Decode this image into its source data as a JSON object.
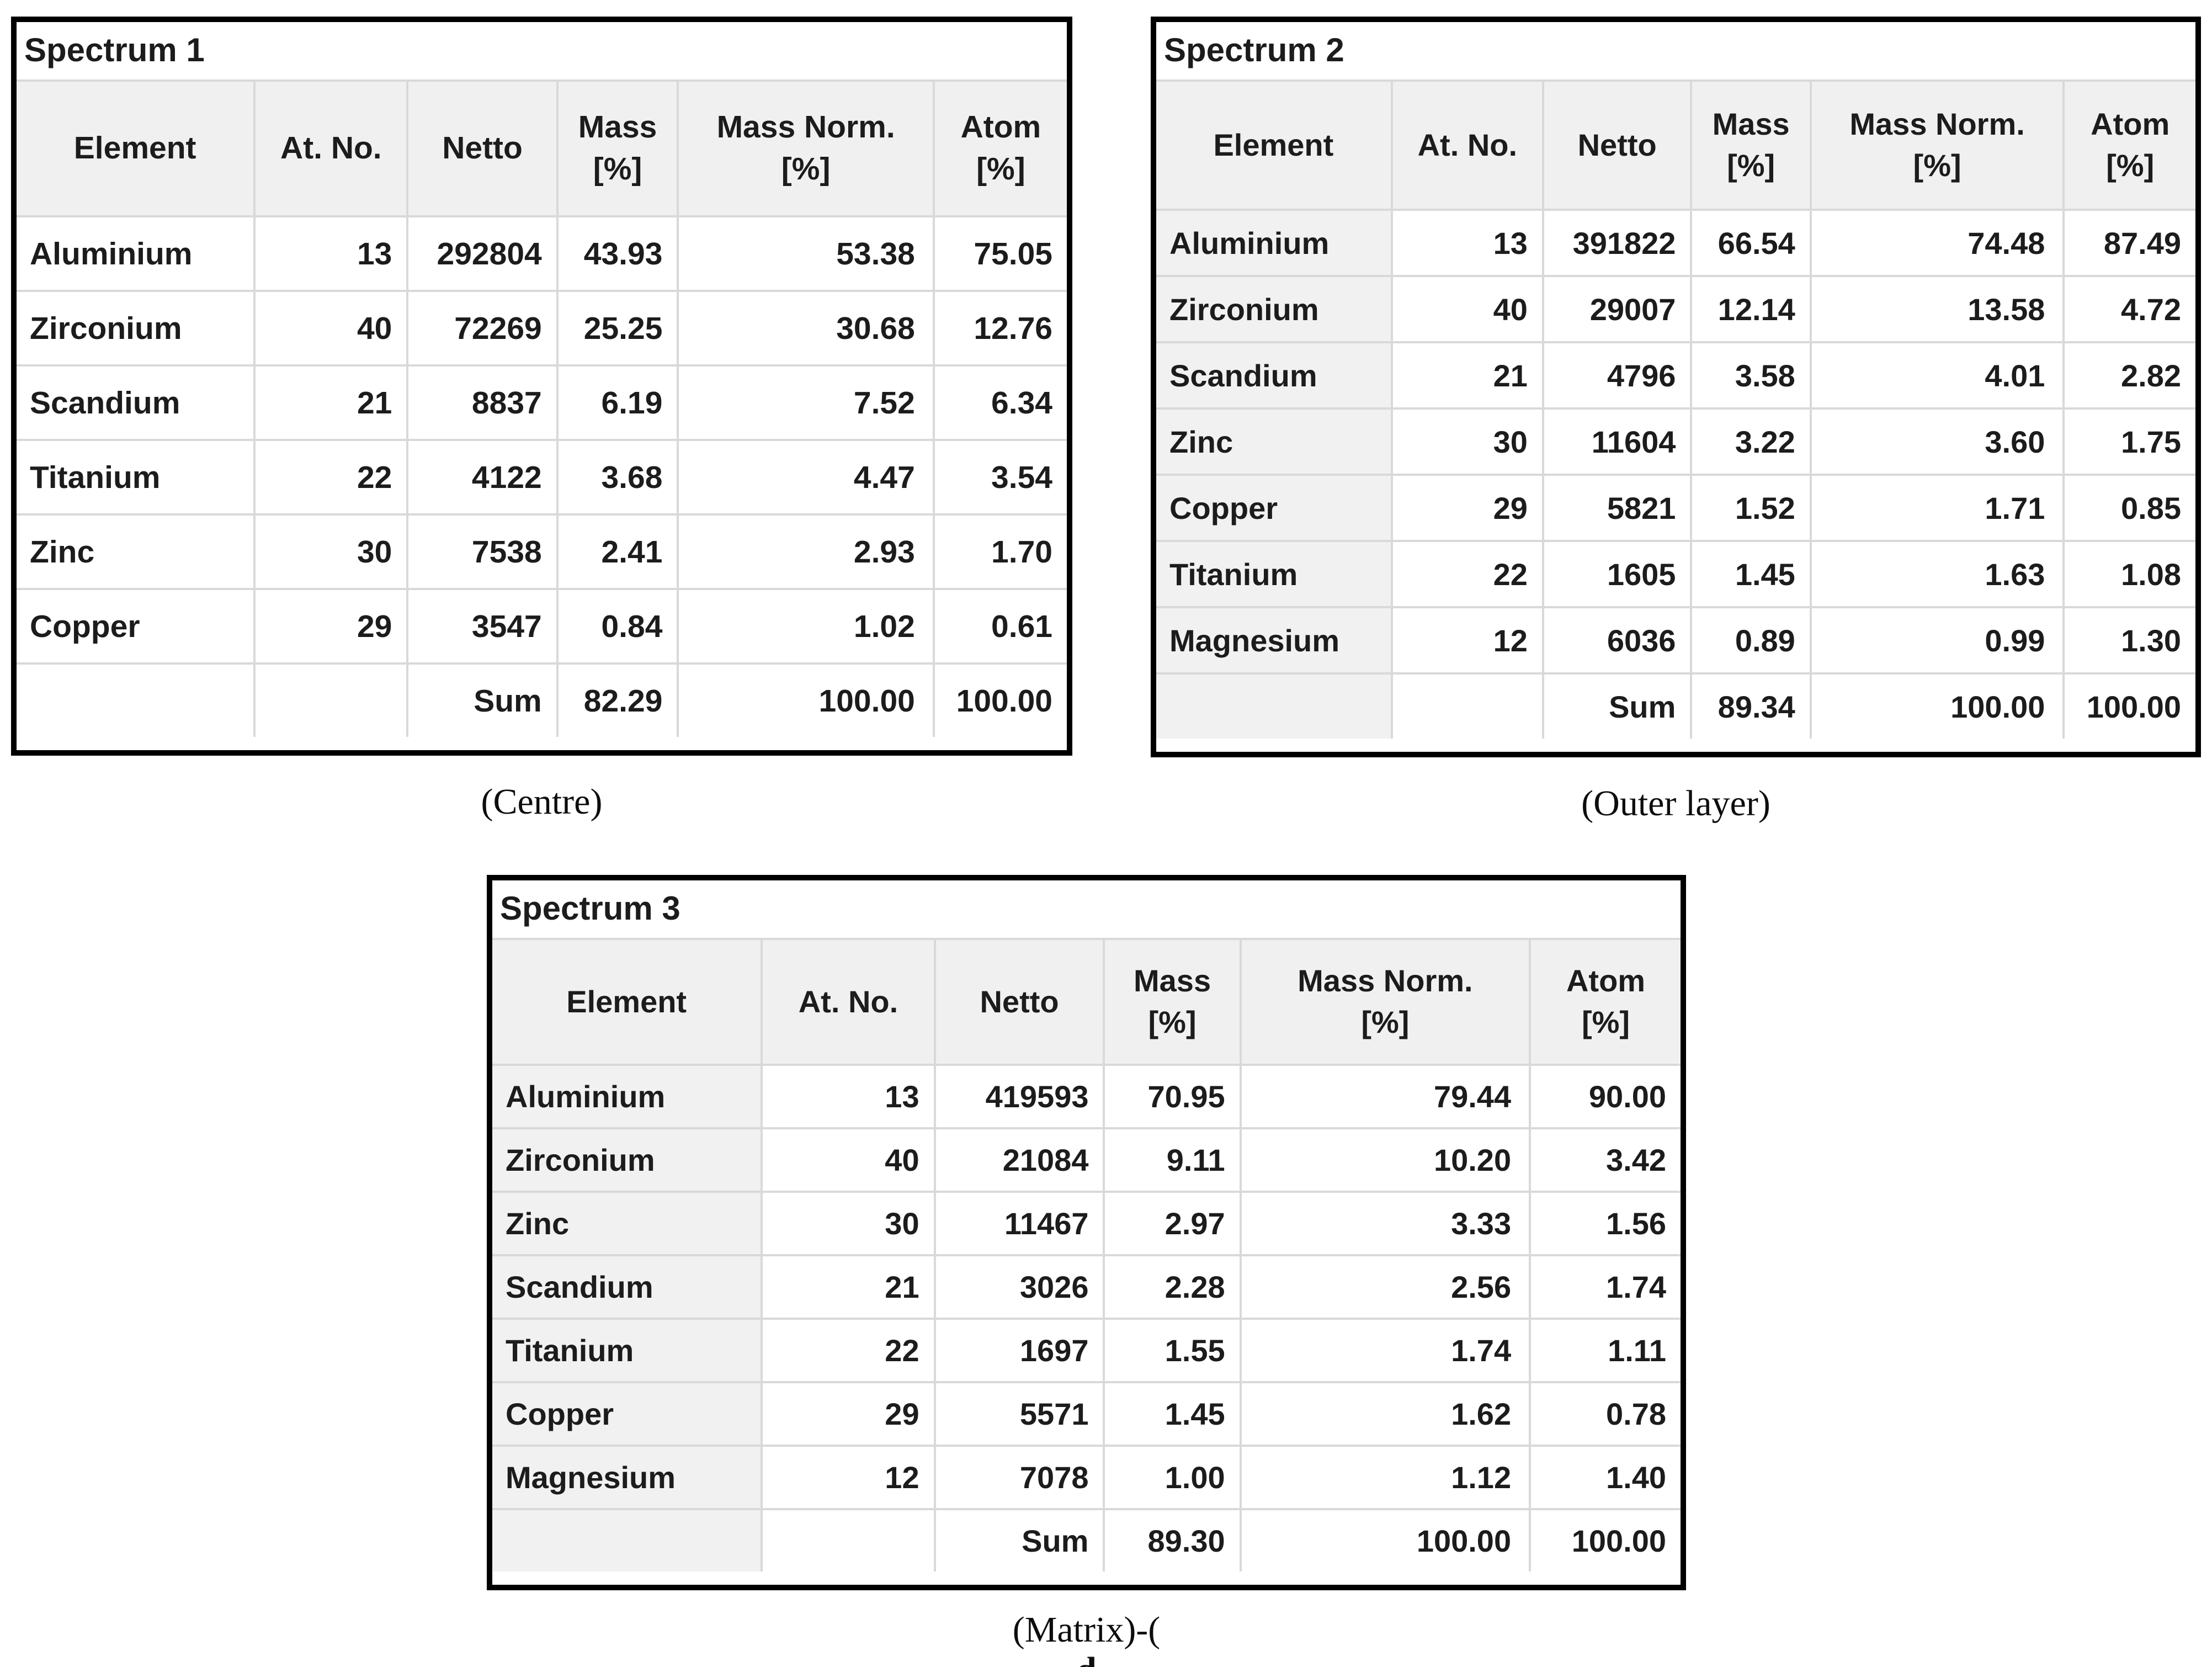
{
  "colors": {
    "outer_border": "#000000",
    "gridline": "#d9d9d9",
    "header_bg": "#f1f0f0",
    "shaded_first_column_bg": "#f2f1f1",
    "text": "#1c1c1c",
    "page_bg": "#ffffff"
  },
  "columns": [
    {
      "label": "Element",
      "unit": ""
    },
    {
      "label": "At. No.",
      "unit": ""
    },
    {
      "label": "Netto",
      "unit": ""
    },
    {
      "label": "Mass",
      "unit": "[%]"
    },
    {
      "label": "Mass Norm.",
      "unit": "[%]"
    },
    {
      "label": "Atom",
      "unit": "[%]"
    }
  ],
  "tables": [
    {
      "title": "Spectrum 1",
      "caption_parts": [
        {
          "text": "(Centre)",
          "bold": false
        }
      ],
      "rows": [
        {
          "element": "Aluminium",
          "at_no": "13",
          "netto": "292804",
          "mass": "43.93",
          "mass_norm": "53.38",
          "atom": "75.05"
        },
        {
          "element": "Zirconium",
          "at_no": "40",
          "netto": "72269",
          "mass": "25.25",
          "mass_norm": "30.68",
          "atom": "12.76"
        },
        {
          "element": "Scandium",
          "at_no": "21",
          "netto": "8837",
          "mass": "6.19",
          "mass_norm": "7.52",
          "atom": "6.34"
        },
        {
          "element": "Titanium",
          "at_no": "22",
          "netto": "4122",
          "mass": "3.68",
          "mass_norm": "4.47",
          "atom": "3.54"
        },
        {
          "element": "Zinc",
          "at_no": "30",
          "netto": "7538",
          "mass": "2.41",
          "mass_norm": "2.93",
          "atom": "1.70"
        },
        {
          "element": "Copper",
          "at_no": "29",
          "netto": "3547",
          "mass": "0.84",
          "mass_norm": "1.02",
          "atom": "0.61"
        }
      ],
      "sum": {
        "label": "Sum",
        "mass": "82.29",
        "mass_norm": "100.00",
        "atom": "100.00"
      }
    },
    {
      "title": "Spectrum 2",
      "caption_parts": [
        {
          "text": "(Outer layer)",
          "bold": false
        }
      ],
      "rows": [
        {
          "element": "Aluminium",
          "at_no": "13",
          "netto": "391822",
          "mass": "66.54",
          "mass_norm": "74.48",
          "atom": "87.49"
        },
        {
          "element": "Zirconium",
          "at_no": "40",
          "netto": "29007",
          "mass": "12.14",
          "mass_norm": "13.58",
          "atom": "4.72"
        },
        {
          "element": "Scandium",
          "at_no": "21",
          "netto": "4796",
          "mass": "3.58",
          "mass_norm": "4.01",
          "atom": "2.82"
        },
        {
          "element": "Zinc",
          "at_no": "30",
          "netto": "11604",
          "mass": "3.22",
          "mass_norm": "3.60",
          "atom": "1.75"
        },
        {
          "element": "Copper",
          "at_no": "29",
          "netto": "5821",
          "mass": "1.52",
          "mass_norm": "1.71",
          "atom": "0.85"
        },
        {
          "element": "Titanium",
          "at_no": "22",
          "netto": "1605",
          "mass": "1.45",
          "mass_norm": "1.63",
          "atom": "1.08"
        },
        {
          "element": "Magnesium",
          "at_no": "12",
          "netto": "6036",
          "mass": "0.89",
          "mass_norm": "0.99",
          "atom": "1.30"
        }
      ],
      "sum": {
        "label": "Sum",
        "mass": "89.34",
        "mass_norm": "100.00",
        "atom": "100.00"
      }
    },
    {
      "title": "Spectrum 3",
      "caption_parts": [
        {
          "text": "(Matrix)-(",
          "bold": false
        },
        {
          "text": "d",
          "bold": true
        },
        {
          "text": ")",
          "bold": false
        }
      ],
      "rows": [
        {
          "element": "Aluminium",
          "at_no": "13",
          "netto": "419593",
          "mass": "70.95",
          "mass_norm": "79.44",
          "atom": "90.00"
        },
        {
          "element": "Zirconium",
          "at_no": "40",
          "netto": "21084",
          "mass": "9.11",
          "mass_norm": "10.20",
          "atom": "3.42"
        },
        {
          "element": "Zinc",
          "at_no": "30",
          "netto": "11467",
          "mass": "2.97",
          "mass_norm": "3.33",
          "atom": "1.56"
        },
        {
          "element": "Scandium",
          "at_no": "21",
          "netto": "3026",
          "mass": "2.28",
          "mass_norm": "2.56",
          "atom": "1.74"
        },
        {
          "element": "Titanium",
          "at_no": "22",
          "netto": "1697",
          "mass": "1.55",
          "mass_norm": "1.74",
          "atom": "1.11"
        },
        {
          "element": "Copper",
          "at_no": "29",
          "netto": "5571",
          "mass": "1.45",
          "mass_norm": "1.62",
          "atom": "0.78"
        },
        {
          "element": "Magnesium",
          "at_no": "12",
          "netto": "7078",
          "mass": "1.00",
          "mass_norm": "1.12",
          "atom": "1.40"
        }
      ],
      "sum": {
        "label": "Sum",
        "mass": "89.30",
        "mass_norm": "100.00",
        "atom": "100.00"
      }
    }
  ]
}
